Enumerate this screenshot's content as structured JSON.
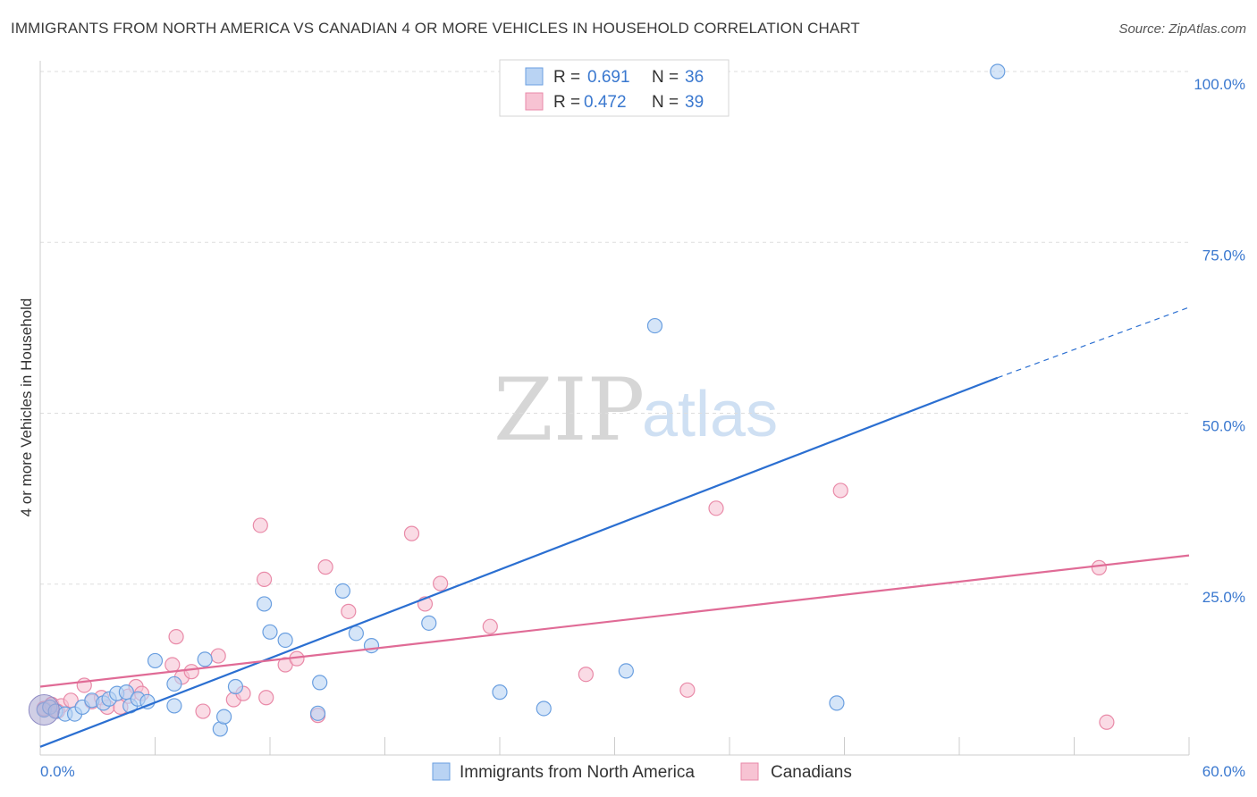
{
  "header": {
    "title": "IMMIGRANTS FROM NORTH AMERICA VS CANADIAN 4 OR MORE VEHICLES IN HOUSEHOLD CORRELATION CHART",
    "source": "Source: ZipAtlas.com"
  },
  "watermark": {
    "zip": "ZIP",
    "atlas": "atlas"
  },
  "legend": {
    "r_label": "R =",
    "n_label": "N =",
    "entries": [
      {
        "r": "0.691",
        "n": "36"
      },
      {
        "r": "0.472",
        "n": "39"
      }
    ]
  },
  "colors": {
    "blue_fill": "#b9d3f3",
    "blue_stroke": "#6a9fe0",
    "blue_line": "#2b6fd1",
    "pink_fill": "#f7c3d3",
    "pink_stroke": "#e98aa8",
    "pink_line": "#e06b96",
    "grid": "#dddddd",
    "tick_text": "#3a78cf"
  },
  "chart_data": {
    "type": "scatter",
    "title": "IMMIGRANTS FROM NORTH AMERICA VS CANADIAN 4 OR MORE VEHICLES IN HOUSEHOLD CORRELATION CHART",
    "xlabel": "",
    "ylabel": "4 or more Vehicles in Household",
    "xlim": [
      0,
      60
    ],
    "ylim": [
      0,
      100
    ],
    "x_tick_labels": [
      "0.0%",
      "60.0%"
    ],
    "y_ticks": [
      25,
      50,
      75,
      100
    ],
    "y_tick_labels": [
      "25.0%",
      "50.0%",
      "75.0%",
      "100.0%"
    ],
    "grid": true,
    "legend_position": "top-center",
    "series": [
      {
        "name": "Immigrants from North America",
        "color": "#6a9fe0",
        "r": 0.691,
        "n": 36,
        "trend": {
          "x": [
            0,
            50
          ],
          "y": [
            1.2,
            55.2
          ],
          "dashed_extension_to": [
            60,
            65.5
          ]
        },
        "points": [
          [
            0.2,
            6.6
          ],
          [
            0.5,
            7.0
          ],
          [
            0.8,
            6.4
          ],
          [
            1.3,
            6.0
          ],
          [
            1.8,
            6.0
          ],
          [
            2.2,
            7.0
          ],
          [
            2.7,
            8.0
          ],
          [
            3.3,
            7.6
          ],
          [
            3.6,
            8.2
          ],
          [
            4.0,
            9.0
          ],
          [
            4.5,
            9.2
          ],
          [
            4.7,
            7.2
          ],
          [
            5.1,
            8.2
          ],
          [
            5.6,
            7.8
          ],
          [
            6.0,
            13.8
          ],
          [
            7.0,
            10.4
          ],
          [
            7.0,
            7.2
          ],
          [
            9.4,
            3.8
          ],
          [
            9.6,
            5.6
          ],
          [
            10.2,
            10.0
          ],
          [
            12.8,
            16.8
          ],
          [
            12.0,
            18.0
          ],
          [
            11.7,
            22.1
          ],
          [
            14.5,
            6.1
          ],
          [
            14.6,
            10.6
          ],
          [
            15.8,
            24.0
          ],
          [
            17.3,
            16.0
          ],
          [
            16.5,
            17.8
          ],
          [
            20.3,
            19.3
          ],
          [
            24.0,
            9.2
          ],
          [
            26.3,
            6.8
          ],
          [
            30.6,
            12.3
          ],
          [
            32.1,
            62.8
          ],
          [
            41.6,
            7.6
          ],
          [
            50.0,
            100.0
          ],
          [
            8.6,
            14.0
          ]
        ]
      },
      {
        "name": "Canadians",
        "color": "#e98aa8",
        "r": 0.472,
        "n": 39,
        "trend": {
          "x": [
            0,
            60
          ],
          "y": [
            10.0,
            29.2
          ]
        },
        "points": [
          [
            0.2,
            6.8
          ],
          [
            0.6,
            7.4
          ],
          [
            1.1,
            7.2
          ],
          [
            1.6,
            8.0
          ],
          [
            2.3,
            10.2
          ],
          [
            2.7,
            7.8
          ],
          [
            3.2,
            8.4
          ],
          [
            3.5,
            7.0
          ],
          [
            4.2,
            7.0
          ],
          [
            4.6,
            8.6
          ],
          [
            5.0,
            10.0
          ],
          [
            5.3,
            9.0
          ],
          [
            7.1,
            17.3
          ],
          [
            6.9,
            13.2
          ],
          [
            7.4,
            11.4
          ],
          [
            7.9,
            12.2
          ],
          [
            8.5,
            6.4
          ],
          [
            9.3,
            14.5
          ],
          [
            10.1,
            8.1
          ],
          [
            10.6,
            9.0
          ],
          [
            11.8,
            8.4
          ],
          [
            11.5,
            33.6
          ],
          [
            11.7,
            25.7
          ],
          [
            12.8,
            13.2
          ],
          [
            13.4,
            14.1
          ],
          [
            14.5,
            5.8
          ],
          [
            14.9,
            27.5
          ],
          [
            16.1,
            21.0
          ],
          [
            19.4,
            32.4
          ],
          [
            20.1,
            22.1
          ],
          [
            20.9,
            25.1
          ],
          [
            23.5,
            18.8
          ],
          [
            28.5,
            11.8
          ],
          [
            33.8,
            9.5
          ],
          [
            35.3,
            36.1
          ],
          [
            41.8,
            38.7
          ],
          [
            55.7,
            4.8
          ],
          [
            55.3,
            27.4
          ],
          [
            0.9,
            6.4
          ]
        ]
      }
    ]
  },
  "bottom_legend": {
    "items": [
      {
        "label": "Immigrants from North America"
      },
      {
        "label": "Canadians"
      }
    ]
  }
}
